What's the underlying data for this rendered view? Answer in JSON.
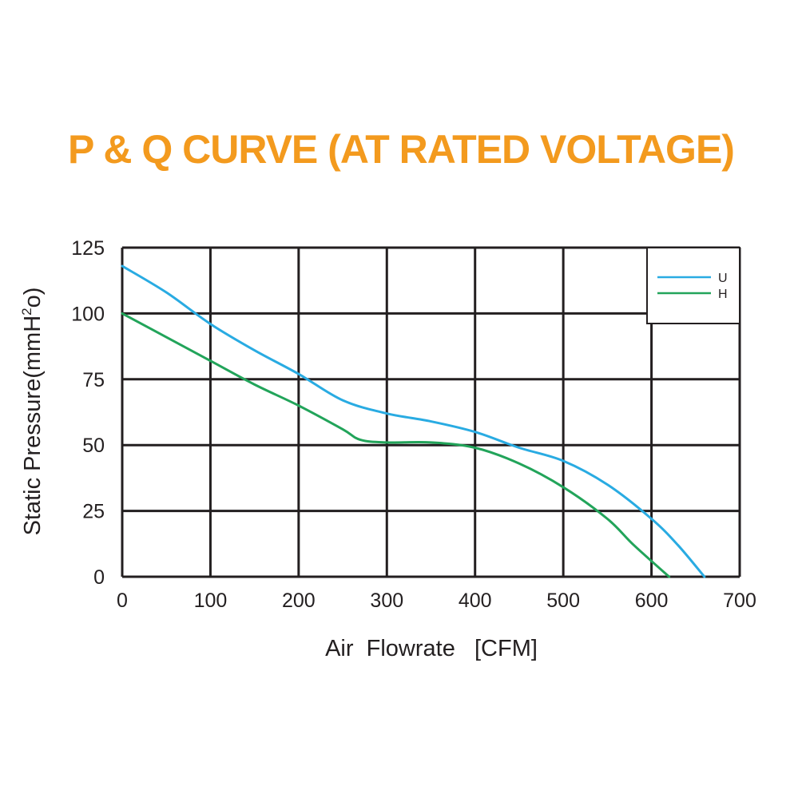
{
  "page": {
    "title": "P & Q CURVE (AT RATED VOLTAGE)",
    "title_color": "#f39a1e"
  },
  "chart_data": {
    "type": "line",
    "title": "P & Q CURVE (AT RATED VOLTAGE)",
    "xlabel": "Air  Flowrate   [CFM]",
    "ylabel": "Static Pressure(mmH²o)",
    "xlim": [
      0,
      700
    ],
    "ylim": [
      0,
      125
    ],
    "xticks": [
      "0",
      "100",
      "200",
      "300",
      "400",
      "500",
      "600",
      "700"
    ],
    "yticks": [
      "0",
      "25",
      "50",
      "75",
      "100",
      "125"
    ],
    "grid": true,
    "legend_position": "top-right",
    "series": [
      {
        "name": "U",
        "color": "#29abe2",
        "x": [
          0,
          50,
          100,
          150,
          200,
          250,
          300,
          350,
          400,
          450,
          500,
          550,
          600,
          630,
          660
        ],
        "y": [
          118,
          108,
          96,
          86,
          77,
          67,
          62,
          59,
          55,
          49,
          44,
          35,
          22,
          12,
          0
        ]
      },
      {
        "name": "H",
        "color": "#22a45a",
        "x": [
          0,
          50,
          100,
          150,
          200,
          250,
          270,
          300,
          350,
          400,
          450,
          500,
          550,
          580,
          620
        ],
        "y": [
          100,
          91,
          82,
          73,
          65,
          56,
          52,
          51,
          51,
          49,
          43,
          34,
          22,
          12,
          0
        ]
      }
    ]
  }
}
